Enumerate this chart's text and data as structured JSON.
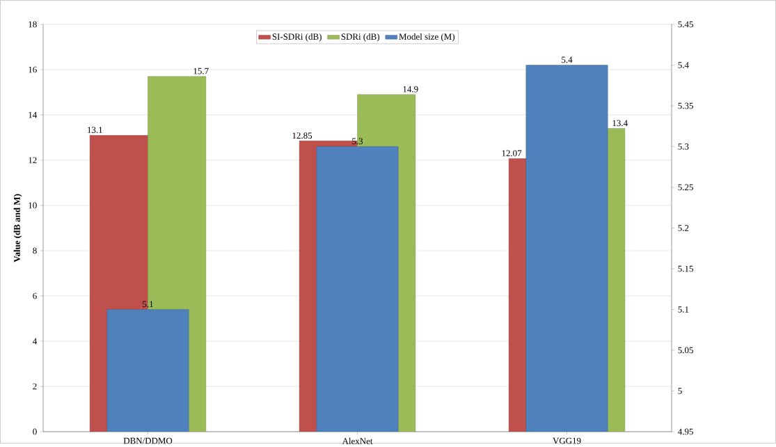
{
  "chart_data": {
    "type": "bar",
    "ylabel": "Value (dB and M)",
    "categories": [
      "DBN/DDMO",
      "AlexNet",
      "VGG19"
    ],
    "series": [
      {
        "name": "SI-SDRi (dB)",
        "color": "#c0504d",
        "values": [
          13.1,
          12.85,
          12.07
        ]
      },
      {
        "name": "SDRi (dB)",
        "color": "#9bbb59",
        "values": [
          15.7,
          14.9,
          13.4
        ]
      },
      {
        "name": "Model size (M)",
        "color": "#4f81bd",
        "values": [
          5.1,
          5.3,
          5.4
        ],
        "axis": "y2"
      }
    ],
    "ylim": [
      0,
      18
    ],
    "yticks": [
      0,
      2,
      4,
      6,
      8,
      10,
      12,
      14,
      16,
      18
    ],
    "y2lim": [
      4.95,
      5.45
    ],
    "y2ticks": [
      4.95,
      5,
      5.05,
      5.1,
      5.15,
      5.2,
      5.25,
      5.3,
      5.35,
      5.4,
      5.45
    ],
    "grid": "y",
    "legend": "top",
    "data_labels": true
  }
}
